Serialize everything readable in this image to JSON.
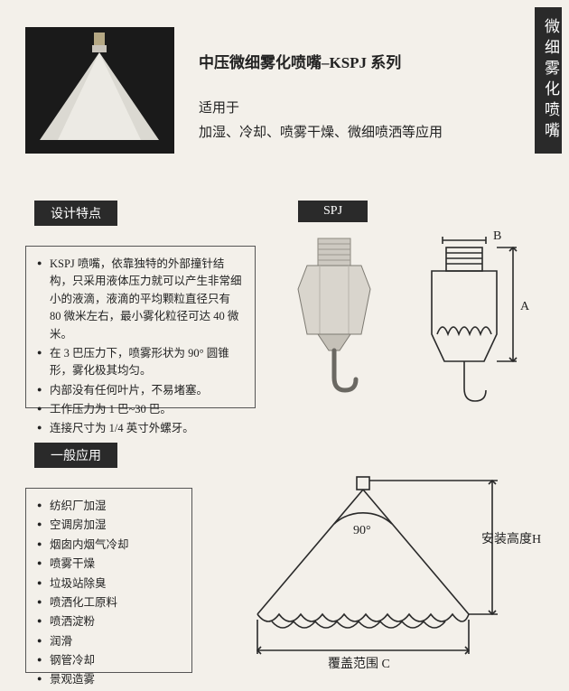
{
  "sideTab": "微细雾化喷嘴",
  "title": "中压微细雾化喷嘴–KSPJ 系列",
  "subtitle1": "适用于",
  "subtitle2": "加湿、冷却、喷雾干燥、微细喷洒等应用",
  "labels": {
    "design": "设计特点",
    "spj": "SPJ",
    "app": "一般应用"
  },
  "designFeatures": [
    "KSPJ 喷嘴，依靠独特的外部撞针结构，只采用液体压力就可以产生非常细小的液滴，液滴的平均颗粒直径只有 80 微米左右，最小雾化粒径可达 40 微米。",
    "在 3 巴压力下，喷雾形状为 90° 圆锥形，雾化极其均匀。",
    "内部没有任何叶片，不易堵塞。",
    "工作压力为 1 巴~30 巴。",
    "连接尺寸为 1/4 英寸外螺牙。"
  ],
  "applications": [
    "纺织厂加湿",
    "空调房加湿",
    "烟囱内烟气冷却",
    "喷雾干燥",
    "垃圾站除臭",
    "喷洒化工原料",
    "喷洒淀粉",
    "润滑",
    "钢管冷却",
    "景观造雾"
  ],
  "schematicA": {
    "labelA": "A",
    "labelB": "B",
    "colors": {
      "stroke": "#2a2a2a",
      "fill": "#f3f0ea"
    }
  },
  "coneDiagram": {
    "angle": "90°",
    "heightLabel": "安装高度H",
    "coverageLabel": "覆盖范围 C",
    "colors": {
      "stroke": "#2a2a2a"
    }
  },
  "heroShape": {
    "bg": "#1a1a1a",
    "cone": "#e8e5df"
  },
  "nozzle": {
    "body": "#d4d0c8",
    "shadow": "#9a968f",
    "hook": "#6a6862"
  }
}
